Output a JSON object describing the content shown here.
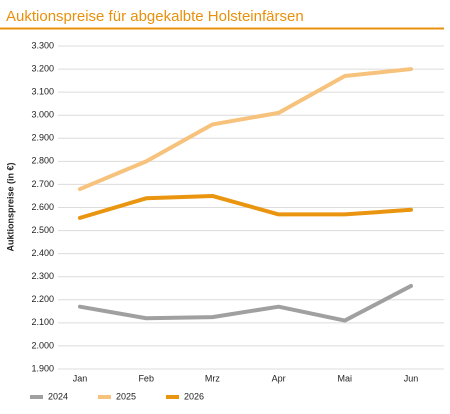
{
  "chart_data": {
    "type": "line",
    "title": "Auktionspreise für abgekalbte Holsteinfärsen",
    "y_label": "Auktionspreise (in €)",
    "categories": [
      "Jan",
      "Feb",
      "Mrz",
      "Apr",
      "Mai",
      "Jun"
    ],
    "series": [
      {
        "name": "2024",
        "color": "#a0a0a0",
        "values": [
          2170,
          2120,
          2125,
          2170,
          2110,
          2260
        ]
      },
      {
        "name": "2025",
        "color": "#f6c27c",
        "values": [
          2680,
          2800,
          2960,
          3010,
          3170,
          3200
        ]
      },
      {
        "name": "2026",
        "color": "#ea950f",
        "values": [
          2555,
          2640,
          2650,
          2570,
          2570,
          2590
        ]
      }
    ],
    "ylim": [
      1900,
      3300
    ],
    "yticks": [
      {
        "value": 1900,
        "label": "1.900"
      },
      {
        "value": 2000,
        "label": "2.000"
      },
      {
        "value": 2100,
        "label": "2.100"
      },
      {
        "value": 2200,
        "label": "2.200"
      },
      {
        "value": 2300,
        "label": "2.300"
      },
      {
        "value": 2400,
        "label": "2.400"
      },
      {
        "value": 2500,
        "label": "2.500"
      },
      {
        "value": 2600,
        "label": "2.600"
      },
      {
        "value": 2700,
        "label": "2.700"
      },
      {
        "value": 2800,
        "label": "2.800"
      },
      {
        "value": 2900,
        "label": "2.900"
      },
      {
        "value": 3000,
        "label": "3.000"
      },
      {
        "value": 3100,
        "label": "3.100"
      },
      {
        "value": 3200,
        "label": "3.200"
      },
      {
        "value": 3300,
        "label": "3.300"
      }
    ],
    "grid": true,
    "legend": "bottom"
  }
}
